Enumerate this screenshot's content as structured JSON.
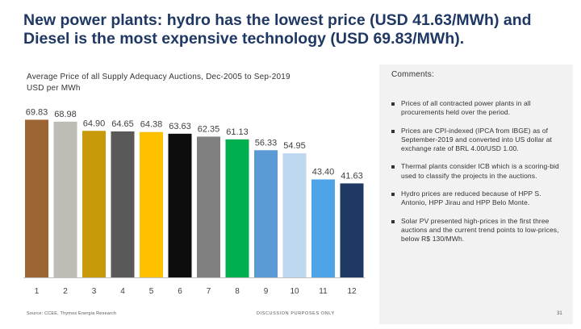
{
  "title": "New power plants: hydro has the lowest price (USD 41.63/MWh) and Diesel is the most expensive technology (USD 69.83/MWh).",
  "chart_data": {
    "type": "bar",
    "title": "Average Price of all Supply Adequacy Auctions, Dec-2005 to Sep-2019",
    "ylabel": "USD per MWh",
    "categories": [
      "1",
      "2",
      "3",
      "4",
      "5",
      "6",
      "7",
      "8",
      "9",
      "10",
      "11",
      "12"
    ],
    "values": [
      69.83,
      68.98,
      64.9,
      64.65,
      64.38,
      63.63,
      62.35,
      61.13,
      56.33,
      54.95,
      43.4,
      41.63
    ],
    "labels": [
      "69.83",
      "68.98",
      "64.90",
      "64.65",
      "64.38",
      "63.63",
      "62.35",
      "61.13",
      "56.33",
      "54.95",
      "43.40",
      "41.63"
    ],
    "colors": [
      "#9c6532",
      "#bfbbb5",
      "#c89a0a",
      "#595959",
      "#ffc000",
      "#0d0d0d",
      "#808080",
      "#00b050",
      "#5b9bd5",
      "#bdd7ee",
      "#4fa3e8",
      "#203864"
    ],
    "ylim": [
      0,
      70
    ],
    "grid": false,
    "legend": "none"
  },
  "comments": {
    "title": "Comments:",
    "bullets": [
      "Prices of all contracted power plants in all procurements held over the period.",
      "Prices are CPI-indexed (IPCA from IBGE) as of September-2019 and converted into US dollar at exchange rate of BRL 4.00/USD 1.00.",
      "Thermal plants consider ICB which is a scoring-bid used to classify the projects in the auctions.",
      "Hydro prices are reduced because of HPP S. Antonio, HPP Jirau and HPP Belo Monte.",
      "Solar PV presented high-prices in the first three auctions and the current trend points to low-prices, below R$ 130/MWh."
    ]
  },
  "footer": {
    "source": "Source: CCEE, Thymos Energia Research",
    "note": "DISCUSSION PURPOSES ONLY",
    "page": "31"
  }
}
